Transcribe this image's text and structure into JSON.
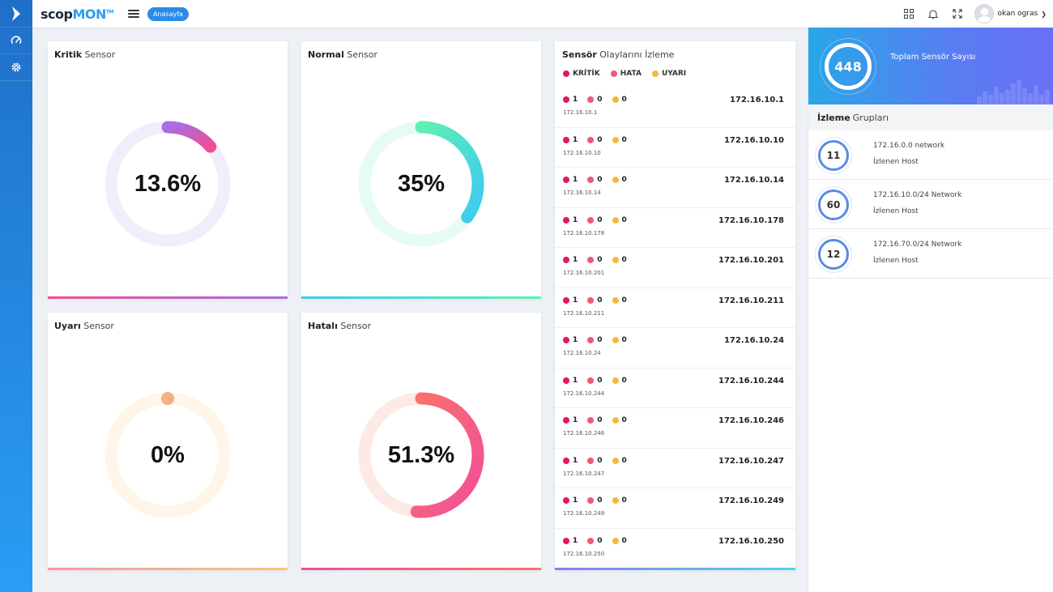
{
  "brand": {
    "part1": "scop",
    "part2": "MON",
    "tm": "TM"
  },
  "breadcrumb": "Anasayfa",
  "user": {
    "name": "okan ogras"
  },
  "gauges": [
    {
      "bold": "Kritik",
      "rest": " Sensor",
      "value": 13.6,
      "display": "13.6%",
      "track": "#f0eefb",
      "c1": "#a86ee6",
      "c2": "#f04e8f",
      "bar1": "#f04e8f",
      "bar2": "#a86ee6"
    },
    {
      "bold": "Normal",
      "rest": " Sensor",
      "value": 35,
      "display": "35%",
      "track": "#e7fbf6",
      "c1": "#5ef0b4",
      "c2": "#3dcbf0",
      "bar1": "#3dcbf0",
      "bar2": "#5ef0b4"
    },
    {
      "bold": "Uyarı",
      "rest": " Sensor",
      "value": 0,
      "display": "0%",
      "track": "#fff5e8",
      "c1": "#f6b77a",
      "c2": "#f6a58e",
      "bar1": "#f798a6",
      "bar2": "#f6c77a"
    },
    {
      "bold": "Hatalı",
      "rest": " Sensor",
      "value": 51.3,
      "display": "51.3%",
      "track": "#fde9e6",
      "c1": "#f9736a",
      "c2": "#f24d9a",
      "bar1": "#f24d9a",
      "bar2": "#f9736a"
    }
  ],
  "events": {
    "title_bold": "Sensör",
    "title_rest": " Olaylarını İzleme",
    "legend": [
      {
        "label": "KRİTİK",
        "color": "#e2185d"
      },
      {
        "label": "HATA",
        "color": "#ee5a74"
      },
      {
        "label": "UYARI",
        "color": "#f0b93e"
      }
    ],
    "rows": [
      {
        "kritik": "1",
        "hata": "0",
        "uyari": "0",
        "ip": "172.16.10.1",
        "sub": "172.16.10.1"
      },
      {
        "kritik": "1",
        "hata": "0",
        "uyari": "0",
        "ip": "172.16.10.10",
        "sub": "172.16.10.10"
      },
      {
        "kritik": "1",
        "hata": "0",
        "uyari": "0",
        "ip": "172.16.10.14",
        "sub": "172.16.10.14"
      },
      {
        "kritik": "1",
        "hata": "0",
        "uyari": "0",
        "ip": "172.16.10.178",
        "sub": "172.16.10.178"
      },
      {
        "kritik": "1",
        "hata": "0",
        "uyari": "0",
        "ip": "172.16.10.201",
        "sub": "172.16.10.201"
      },
      {
        "kritik": "1",
        "hata": "0",
        "uyari": "0",
        "ip": "172.16.10.211",
        "sub": "172.16.10.211"
      },
      {
        "kritik": "1",
        "hata": "0",
        "uyari": "0",
        "ip": "172.16.10.24",
        "sub": "172.16.10.24"
      },
      {
        "kritik": "1",
        "hata": "0",
        "uyari": "0",
        "ip": "172.16.10.244",
        "sub": "172.16.10.244"
      },
      {
        "kritik": "1",
        "hata": "0",
        "uyari": "0",
        "ip": "172.16.10.246",
        "sub": "172.16.10.246"
      },
      {
        "kritik": "1",
        "hata": "0",
        "uyari": "0",
        "ip": "172.16.10.247",
        "sub": "172.16.10.247"
      },
      {
        "kritik": "1",
        "hata": "0",
        "uyari": "0",
        "ip": "172.16.10.249",
        "sub": "172.16.10.249"
      },
      {
        "kritik": "1",
        "hata": "0",
        "uyari": "0",
        "ip": "172.16.10.250",
        "sub": "172.16.10.250"
      }
    ]
  },
  "total": {
    "value": "448",
    "label": "Toplam Sensör Sayısı"
  },
  "groups": {
    "title_bold": "İzleme",
    "title_rest": "Grupları",
    "items": [
      {
        "count": "11",
        "network": "172.16.0.0 network",
        "host": "İzlenen Host"
      },
      {
        "count": "60",
        "network": "172.16.10.0/24 Network",
        "host": "İzlenen Host"
      },
      {
        "count": "12",
        "network": "172.16.70.0/24 Network",
        "host": "İzlenen Host"
      }
    ]
  }
}
